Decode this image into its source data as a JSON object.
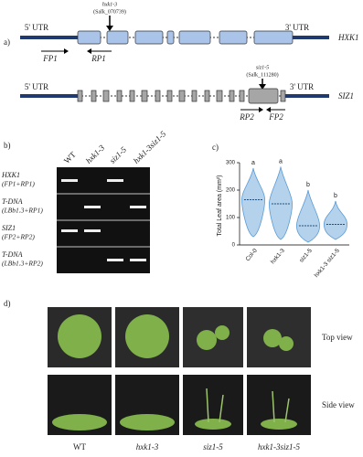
{
  "panel_a": {
    "label": "a)",
    "hxk1": {
      "gene": "HXK1",
      "utr5": "5' UTR",
      "utr3": "3' UTR",
      "allele": "hxk1-3",
      "line": "(Salk_070739)",
      "fp": "FP1",
      "rp": "RP1"
    },
    "siz1": {
      "gene": "SIZ1",
      "utr5": "5' UTR",
      "utr3": "3' UTR",
      "allele": "siz1-5",
      "line": "(Salk_111280)",
      "fp": "FP2",
      "rp": "RP2"
    }
  },
  "panel_b": {
    "label": "b)",
    "lanes": [
      "WT",
      "hxk1-3",
      "siz1-5",
      "hxk1-3siz1-5"
    ],
    "rows": [
      [
        "HXK1",
        "(FP1+RP1)"
      ],
      [
        "T-DNA",
        "(LBb1.3+RP1)"
      ],
      [
        "SIZ1",
        "(FP2+RP2)"
      ],
      [
        "T-DNA",
        "(LBb1.3+RP2)"
      ]
    ]
  },
  "panel_c": {
    "label": "c)",
    "chart_data": {
      "type": "violin",
      "y_label": "Total Leaf area (mm²)",
      "categories": [
        "Col-0",
        "hxk1-3",
        "siz1-5",
        "hxk1-3 siz1-5"
      ],
      "medians": [
        165,
        150,
        70,
        75
      ],
      "min": [
        30,
        20,
        10,
        20
      ],
      "max": [
        280,
        285,
        200,
        160
      ],
      "letters": [
        "a",
        "a",
        "b",
        "b"
      ],
      "color": "#5b9bd5",
      "ylim": [
        0,
        300
      ],
      "yticks": [
        0,
        100,
        200,
        300
      ]
    }
  },
  "panel_d": {
    "label": "d)",
    "rows": [
      "Top view",
      "Side view"
    ],
    "columns": [
      "WT",
      "hxk1-3",
      "siz1-5",
      "hxk1-3siz1-5"
    ]
  }
}
